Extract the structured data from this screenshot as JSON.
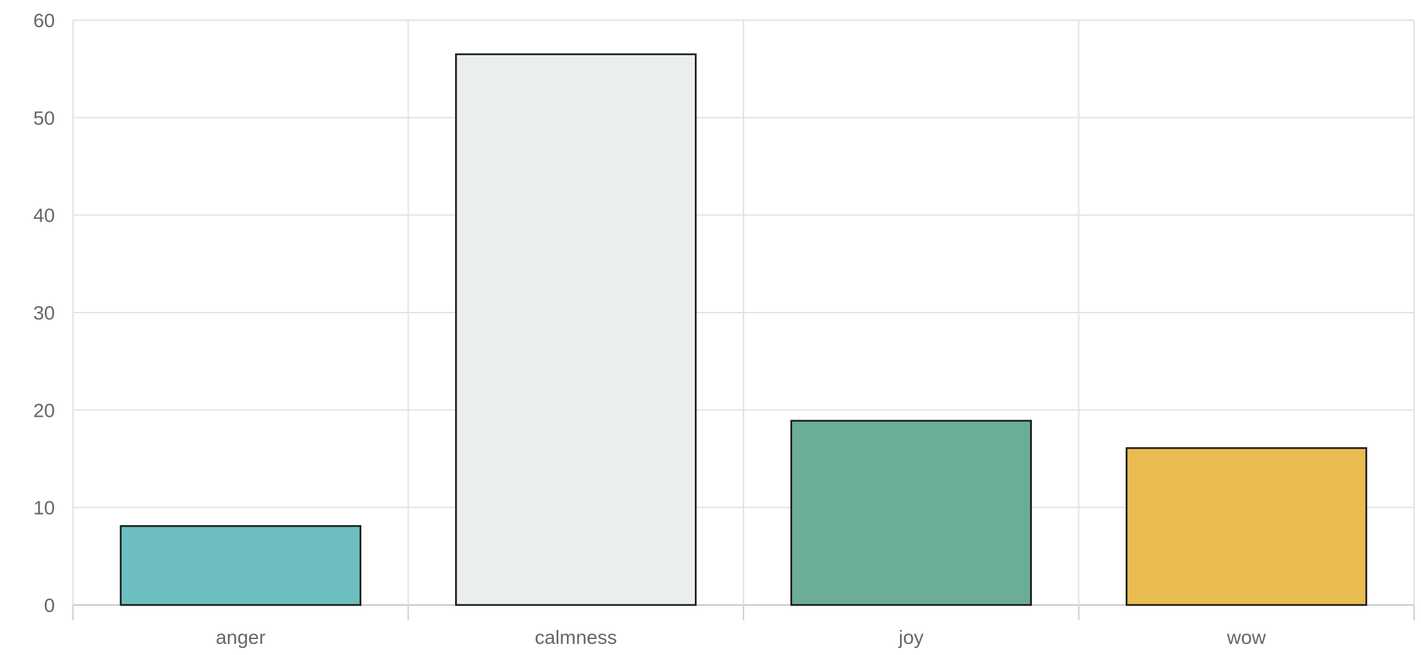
{
  "chart_data": {
    "type": "bar",
    "title": "",
    "xlabel": "",
    "ylabel": "",
    "categories": [
      "anger",
      "calmness",
      "joy",
      "wow"
    ],
    "values": [
      8.1,
      56.5,
      18.9,
      16.1
    ],
    "colors": [
      "#6dbfbf",
      "#eaeeef",
      "#6bad96",
      "#e9bb50"
    ],
    "bar_border_color": "#1a1a1a",
    "grid_color": "#e3e3e3",
    "ylim": [
      0,
      60
    ],
    "yticks": [
      "0",
      "10",
      "20",
      "30",
      "40",
      "50",
      "60"
    ],
    "grid": true
  }
}
